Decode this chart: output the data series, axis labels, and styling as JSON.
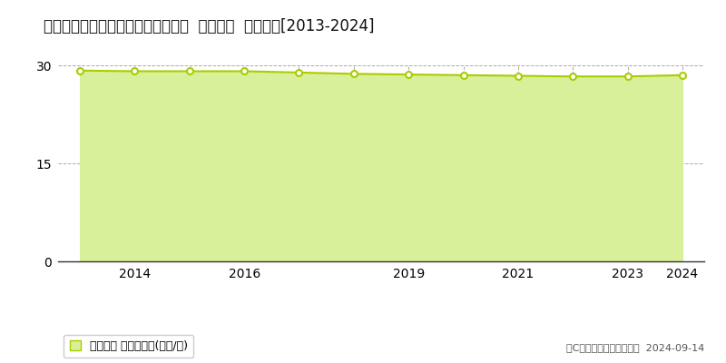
{
  "title": "愛知県田原市東赤石４丁目２１番外  地価公示  地価推移[2013-2024]",
  "years": [
    2013,
    2014,
    2015,
    2016,
    2017,
    2018,
    2019,
    2020,
    2021,
    2022,
    2023,
    2024
  ],
  "values": [
    29.2,
    29.1,
    29.1,
    29.1,
    28.9,
    28.7,
    28.6,
    28.5,
    28.4,
    28.3,
    28.3,
    28.5
  ],
  "line_color": "#aacc00",
  "fill_color": "#d8f09a",
  "marker_face_color": "#ffffff",
  "marker_edge_color": "#aacc00",
  "background_color": "#ffffff",
  "grid_color": "#aaaaaa",
  "ylim": [
    0,
    30
  ],
  "yticks": [
    0,
    15,
    30
  ],
  "xticks": [
    2014,
    2016,
    2019,
    2021,
    2023,
    2024
  ],
  "xlim_left": 2012.6,
  "xlim_right": 2024.4,
  "legend_label": "地価公示 平均坊単価(万円/坊)",
  "copyright_text": "（C）土地価格ドットコム  2024-09-14",
  "title_fontsize": 12,
  "legend_fontsize": 9,
  "tick_fontsize": 10,
  "copyright_fontsize": 8
}
